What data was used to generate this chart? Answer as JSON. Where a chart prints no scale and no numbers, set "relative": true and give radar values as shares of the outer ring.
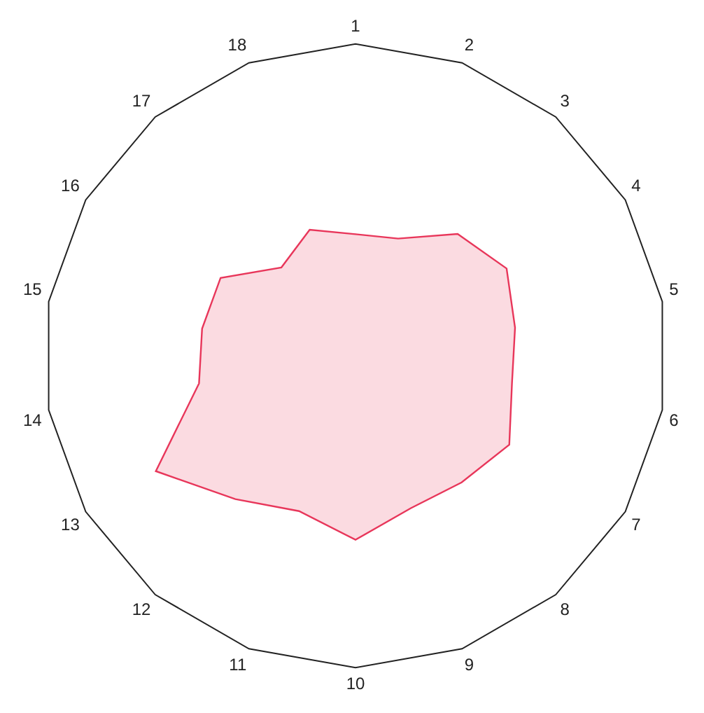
{
  "chart_data": {
    "type": "radar",
    "relative": true,
    "grid": true,
    "marker": "none",
    "categories": [
      "1",
      "2",
      "3",
      "4",
      "5",
      "6",
      "7",
      "8",
      "9",
      "10",
      "11",
      "12",
      "13",
      "14",
      "15",
      "16",
      "17",
      "18"
    ],
    "series": [
      {
        "color": "#e8365a",
        "values": [
          0.39,
          0.4,
          0.51,
          0.56,
          0.52,
          0.51,
          0.57,
          0.53,
          0.52,
          0.59,
          0.53,
          0.6,
          0.74,
          0.51,
          0.5,
          0.5,
          0.37,
          0.43
        ]
      }
    ]
  }
}
